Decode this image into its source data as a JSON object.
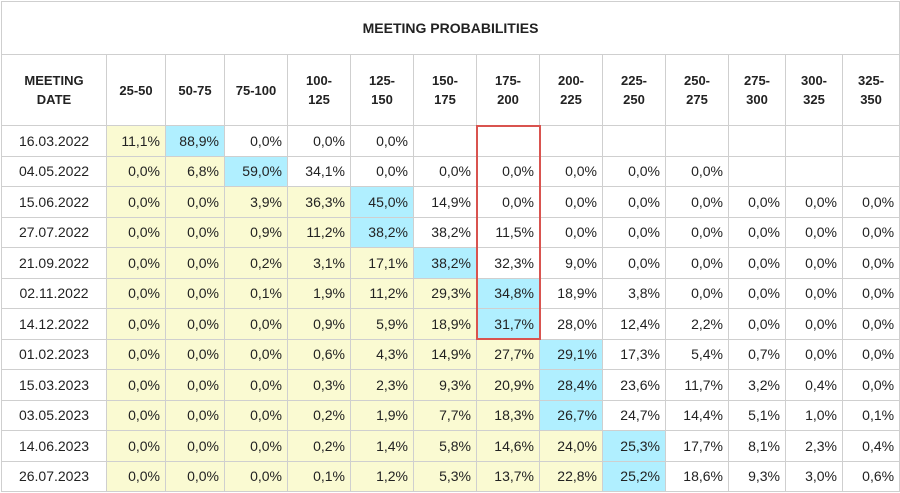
{
  "title": "MEETING PROBABILITIES",
  "columns": [
    "MEETING\nDATE",
    "25-50",
    "50-75",
    "75-100",
    "100-\n125",
    "125-\n150",
    "150-\n175",
    "175-\n200",
    "200-\n225",
    "225-\n250",
    "250-\n275",
    "275-\n300",
    "300-\n325",
    "325-\n350"
  ],
  "rows": [
    {
      "date": "16.03.2022",
      "values": [
        "11,1%",
        "88,9%",
        "0,0%",
        "0,0%",
        "0,0%",
        "",
        "",
        "",
        "",
        "",
        "",
        "",
        ""
      ]
    },
    {
      "date": "04.05.2022",
      "values": [
        "0,0%",
        "6,8%",
        "59,0%",
        "34,1%",
        "0,0%",
        "0,0%",
        "0,0%",
        "0,0%",
        "0,0%",
        "0,0%",
        "",
        "",
        ""
      ]
    },
    {
      "date": "15.06.2022",
      "values": [
        "0,0%",
        "0,0%",
        "3,9%",
        "36,3%",
        "45,0%",
        "14,9%",
        "0,0%",
        "0,0%",
        "0,0%",
        "0,0%",
        "0,0%",
        "0,0%",
        "0,0%"
      ]
    },
    {
      "date": "27.07.2022",
      "values": [
        "0,0%",
        "0,0%",
        "0,9%",
        "11,2%",
        "38,2%",
        "38,2%",
        "11,5%",
        "0,0%",
        "0,0%",
        "0,0%",
        "0,0%",
        "0,0%",
        "0,0%"
      ]
    },
    {
      "date": "21.09.2022",
      "values": [
        "0,0%",
        "0,0%",
        "0,2%",
        "3,1%",
        "17,1%",
        "38,2%",
        "32,3%",
        "9,0%",
        "0,0%",
        "0,0%",
        "0,0%",
        "0,0%",
        "0,0%"
      ]
    },
    {
      "date": "02.11.2022",
      "values": [
        "0,0%",
        "0,0%",
        "0,1%",
        "1,9%",
        "11,2%",
        "29,3%",
        "34,8%",
        "18,9%",
        "3,8%",
        "0,0%",
        "0,0%",
        "0,0%",
        "0,0%"
      ]
    },
    {
      "date": "14.12.2022",
      "values": [
        "0,0%",
        "0,0%",
        "0,0%",
        "0,9%",
        "5,9%",
        "18,9%",
        "31,7%",
        "28,0%",
        "12,4%",
        "2,2%",
        "0,0%",
        "0,0%",
        "0,0%"
      ]
    },
    {
      "date": "01.02.2023",
      "values": [
        "0,0%",
        "0,0%",
        "0,0%",
        "0,6%",
        "4,3%",
        "14,9%",
        "27,7%",
        "29,1%",
        "17,3%",
        "5,4%",
        "0,7%",
        "0,0%",
        "0,0%"
      ]
    },
    {
      "date": "15.03.2023",
      "values": [
        "0,0%",
        "0,0%",
        "0,0%",
        "0,3%",
        "2,3%",
        "9,3%",
        "20,9%",
        "28,4%",
        "23,6%",
        "11,7%",
        "3,2%",
        "0,4%",
        "0,0%"
      ]
    },
    {
      "date": "03.05.2023",
      "values": [
        "0,0%",
        "0,0%",
        "0,0%",
        "0,2%",
        "1,9%",
        "7,7%",
        "18,3%",
        "26,7%",
        "24,7%",
        "14,4%",
        "5,1%",
        "1,0%",
        "0,1%"
      ]
    },
    {
      "date": "14.06.2023",
      "values": [
        "0,0%",
        "0,0%",
        "0,0%",
        "0,2%",
        "1,4%",
        "5,8%",
        "14,6%",
        "24,0%",
        "25,3%",
        "17,7%",
        "8,1%",
        "2,3%",
        "0,4%"
      ]
    },
    {
      "date": "26.07.2023",
      "values": [
        "0,0%",
        "0,0%",
        "0,0%",
        "0,1%",
        "1,2%",
        "5,3%",
        "13,7%",
        "22,8%",
        "25,2%",
        "18,6%",
        "9,3%",
        "3,0%",
        "0,6%"
      ]
    }
  ],
  "colors": {
    "cumulative": "#fafad2",
    "highest": "#b0efff",
    "highlight_border": "#d9534f"
  },
  "chart_data": {
    "type": "table",
    "title": "MEETING PROBABILITIES",
    "column_header": "MEETING DATE",
    "categories": [
      "25-50",
      "50-75",
      "75-100",
      "100-125",
      "125-150",
      "150-175",
      "175-200",
      "200-225",
      "225-250",
      "250-275",
      "275-300",
      "300-325",
      "325-350"
    ],
    "highlight": {
      "column": "175-200",
      "rows": [
        "16.03.2022",
        "04.05.2022",
        "15.06.2022",
        "27.07.2022",
        "21.09.2022",
        "02.11.2022",
        "14.12.2022"
      ]
    }
  }
}
